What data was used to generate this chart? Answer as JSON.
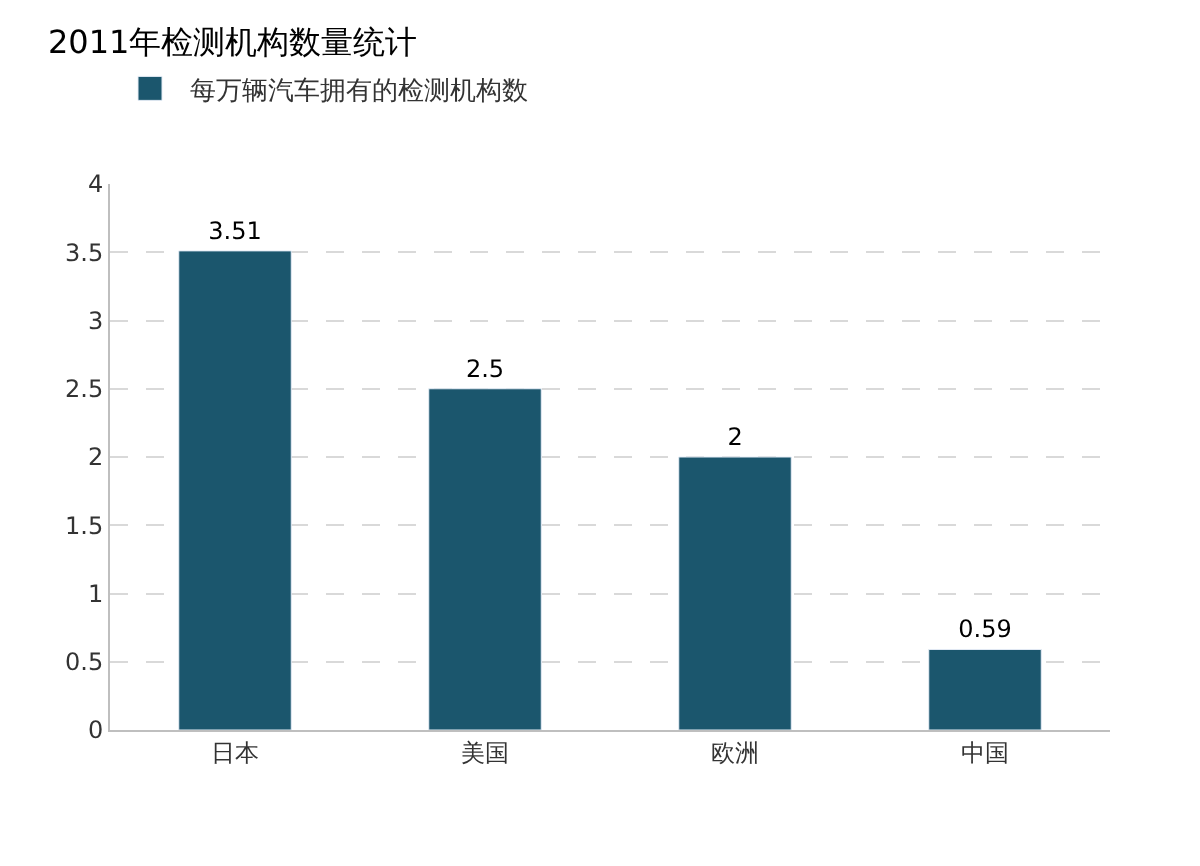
{
  "chart_data": {
    "type": "bar",
    "title": "2011年检测机构数量统计",
    "categories": [
      "日本",
      "美国",
      "欧洲",
      "中国"
    ],
    "series": [
      {
        "name": "每万辆汽车拥有的检测机构数",
        "color": "#1b566d",
        "values": [
          3.51,
          2.5,
          2,
          0.59
        ]
      }
    ],
    "ylim": [
      0,
      4
    ],
    "yticks": [
      0,
      0.5,
      1,
      1.5,
      2,
      2.5,
      3,
      3.5,
      4
    ],
    "grid": "y",
    "legend": "top left",
    "data_labels": true
  }
}
